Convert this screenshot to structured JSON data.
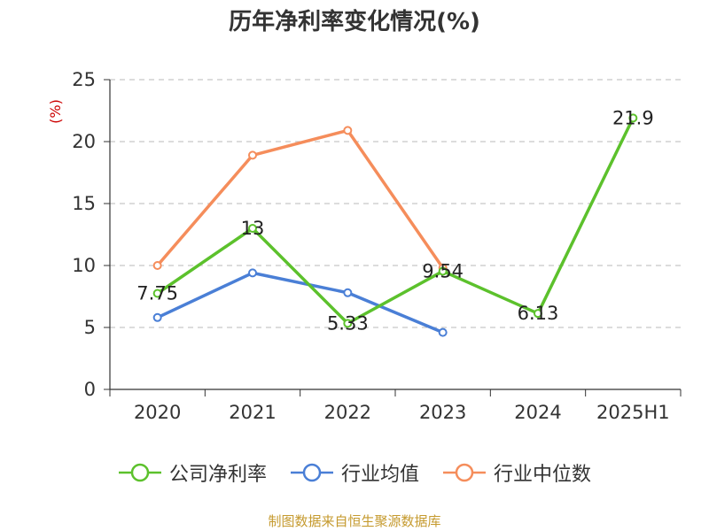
{
  "chart_data": {
    "type": "line",
    "title": "历年净利率变化情况(%)",
    "ylabel": "(%)",
    "xlabel": "",
    "categories": [
      "2020",
      "2021",
      "2022",
      "2023",
      "2024",
      "2025H1"
    ],
    "ylim": [
      0,
      25
    ],
    "yticks": [
      0,
      5,
      10,
      15,
      20,
      25
    ],
    "grid": "dashed-horizontal",
    "legend_position": "bottom",
    "series": [
      {
        "name": "公司净利率",
        "color": "#5cc12c",
        "values": [
          7.75,
          13,
          5.33,
          9.54,
          6.13,
          21.9
        ],
        "labels": [
          "7.75",
          "13",
          "5.33",
          "9.54",
          "6.13",
          "21.9"
        ]
      },
      {
        "name": "行业均值",
        "color": "#4a7fd6",
        "values": [
          5.8,
          9.4,
          7.8,
          4.6,
          null,
          null
        ]
      },
      {
        "name": "行业中位数",
        "color": "#f58d5b",
        "values": [
          10.0,
          18.9,
          20.9,
          9.8,
          null,
          null
        ]
      }
    ]
  },
  "source": "制图数据来自恒生聚源数据库"
}
